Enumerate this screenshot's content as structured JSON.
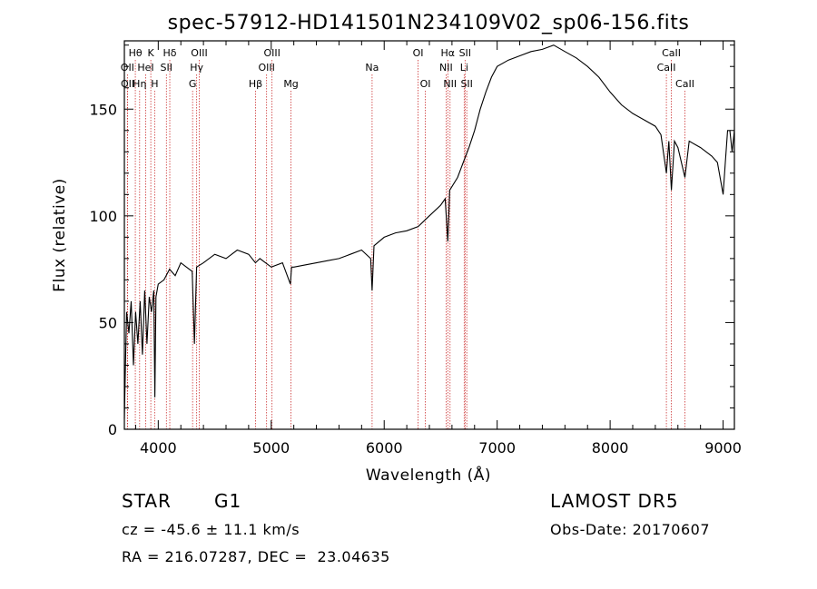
{
  "chart_data": {
    "type": "line",
    "title": "spec-57912-HD141501N234109V02_sp06-156.fits",
    "xlabel": "Wavelength (Å)",
    "ylabel": "Flux (relative)",
    "xlim": [
      3700,
      9100
    ],
    "ylim": [
      0,
      182
    ],
    "x_ticks": [
      4000,
      5000,
      6000,
      7000,
      8000,
      9000
    ],
    "x_tick_labels": [
      "4000",
      "5000",
      "6000",
      "7000",
      "8000",
      "9000"
    ],
    "y_ticks": [
      0,
      50,
      100,
      150
    ],
    "y_tick_labels": [
      "0",
      "50",
      "100",
      "150"
    ],
    "line_color": "#000000",
    "marker_color": "#cc3333",
    "series": [
      {
        "x": [
          3700,
          3710,
          3720,
          3740,
          3760,
          3780,
          3800,
          3820,
          3840,
          3860,
          3880,
          3900,
          3920,
          3940,
          3960,
          3970,
          3980,
          4000,
          4050,
          4100,
          4150,
          4200,
          4250,
          4300,
          4320,
          4340,
          4400,
          4500,
          4600,
          4700,
          4800,
          4860,
          4900,
          5000,
          5100,
          5170,
          5180,
          5200,
          5300,
          5400,
          5500,
          5600,
          5700,
          5800,
          5880,
          5893,
          5910,
          6000,
          6100,
          6200,
          6300,
          6400,
          6500,
          6540,
          6563,
          6580,
          6650,
          6700,
          6750,
          6800,
          6850,
          6900,
          6950,
          7000,
          7100,
          7200,
          7300,
          7400,
          7500,
          7600,
          7700,
          7800,
          7900,
          8000,
          8100,
          8200,
          8300,
          8400,
          8450,
          8498,
          8520,
          8542,
          8570,
          8600,
          8662,
          8700,
          8800,
          8900,
          8950,
          9000,
          9020,
          9040,
          9060,
          9080,
          9100
        ],
        "y": [
          5,
          30,
          55,
          45,
          60,
          30,
          55,
          40,
          60,
          35,
          65,
          40,
          62,
          55,
          65,
          15,
          62,
          68,
          70,
          75,
          72,
          78,
          76,
          74,
          40,
          76,
          78,
          82,
          80,
          84,
          82,
          78,
          80,
          76,
          78,
          68,
          76,
          76,
          77,
          78,
          79,
          80,
          82,
          84,
          80,
          65,
          86,
          90,
          92,
          93,
          95,
          100,
          105,
          108,
          88,
          112,
          118,
          125,
          132,
          140,
          150,
          158,
          165,
          170,
          173,
          175,
          177,
          178,
          180,
          177,
          174,
          170,
          165,
          158,
          152,
          148,
          145,
          142,
          138,
          120,
          135,
          112,
          135,
          132,
          118,
          135,
          132,
          128,
          125,
          110,
          125,
          140,
          140,
          130,
          140
        ]
      }
    ],
    "annotations": [
      {
        "label": "Hθ",
        "x": 3797,
        "row": 1
      },
      {
        "label": "K",
        "x": 3934,
        "row": 1
      },
      {
        "label": "Hδ",
        "x": 4102,
        "row": 1
      },
      {
        "label": "OIII",
        "x": 4363,
        "row": 1
      },
      {
        "label": "OIII",
        "x": 5007,
        "row": 1
      },
      {
        "label": "OI",
        "x": 6300,
        "row": 1
      },
      {
        "label": "Hα",
        "x": 6563,
        "row": 1
      },
      {
        "label": "SII",
        "x": 6716,
        "row": 1
      },
      {
        "label": "CaII",
        "x": 8542,
        "row": 1
      },
      {
        "label": "OII",
        "x": 3727,
        "row": 2
      },
      {
        "label": "HeI",
        "x": 3889,
        "row": 2
      },
      {
        "label": "SII",
        "x": 4072,
        "row": 2
      },
      {
        "label": "Hγ",
        "x": 4340,
        "row": 2
      },
      {
        "label": "OIII",
        "x": 4959,
        "row": 2
      },
      {
        "label": "Na",
        "x": 5893,
        "row": 2
      },
      {
        "label": "NII",
        "x": 6548,
        "row": 2
      },
      {
        "label": "Li",
        "x": 6708,
        "row": 2
      },
      {
        "label": "CaII",
        "x": 8498,
        "row": 2
      },
      {
        "label": "OII",
        "x": 3729,
        "row": 3
      },
      {
        "label": "Hη",
        "x": 3835,
        "row": 3
      },
      {
        "label": "H",
        "x": 3968,
        "row": 3
      },
      {
        "label": "G",
        "x": 4304,
        "row": 3
      },
      {
        "label": "Hβ",
        "x": 4861,
        "row": 3
      },
      {
        "label": "Mg",
        "x": 5175,
        "row": 3
      },
      {
        "label": "OI",
        "x": 6364,
        "row": 3
      },
      {
        "label": "NII",
        "x": 6583,
        "row": 3
      },
      {
        "label": "SII",
        "x": 6731,
        "row": 3
      },
      {
        "label": "CaII",
        "x": 8662,
        "row": 3
      }
    ]
  },
  "info": {
    "object_class": "STAR",
    "subclass": "G1",
    "survey": "LAMOST DR5",
    "redshift": "cz = -45.6 ± 11.1 km/s",
    "obs_date": "Obs-Date: 20170607",
    "coords": "RA = 216.07287, DEC =  23.04635"
  }
}
